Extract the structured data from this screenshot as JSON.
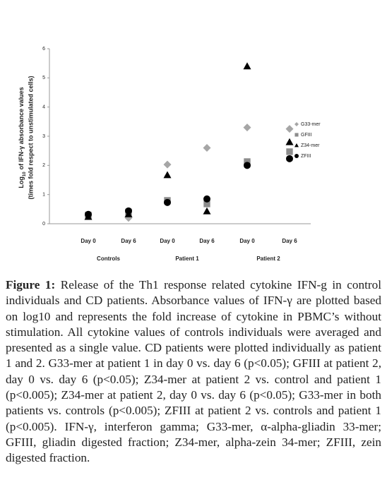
{
  "chart_data": {
    "type": "scatter",
    "y_label_main": "Log",
    "y_label_sub": "10",
    "y_label_rest": "of IFN-γ absorbance values",
    "y_label_line2": "(times fold respect to unstimulated cells)",
    "categories": [
      "Day 0",
      "Day 6",
      "Day 0",
      "Day 6",
      "Day 0",
      "Day 6"
    ],
    "groups": [
      "Controls",
      "Patient 1",
      "Patient 2"
    ],
    "ylim": [
      0,
      6
    ],
    "yticks": [
      0,
      1,
      2,
      3,
      4,
      5,
      6
    ],
    "series": [
      {
        "name": "G33-mer",
        "color": "#a6a6a6",
        "marker": "diamond",
        "values": [
          0.27,
          0.2,
          2.03,
          2.6,
          3.3,
          3.25
        ]
      },
      {
        "name": "GFIII",
        "color": "#8c8c8c",
        "marker": "square",
        "values": [
          0.3,
          0.4,
          0.8,
          0.68,
          2.13,
          2.47
        ]
      },
      {
        "name": "Z34-mer",
        "color": "#000000",
        "marker": "triangle",
        "values": [
          0.24,
          0.33,
          1.67,
          0.43,
          5.4,
          2.8
        ]
      },
      {
        "name": "ZFIII",
        "color": "#000000",
        "marker": "circle",
        "values": [
          0.32,
          0.44,
          0.73,
          0.85,
          2.0,
          2.23
        ]
      }
    ]
  },
  "caption": {
    "label": "Figure 1:",
    "text": "Release of the Th1 response related cytokine IFN-g in control individuals and CD patients. Absorbance values of IFN-γ are plotted based on log10 and represents the fold increase of cytokine in PBMC’s without stimulation. All cytokine values of controls individuals were averaged and presented as a single value. CD patients were plotted individually as patient 1 and 2. G33-mer at patient 1 in day 0 vs. day 6 (p<0.05); GFIII at patient 2, day 0 vs. day 6 (p<0.05); Z34-mer at patient 2 vs. control and patient 1 (p<0.005); Z34-mer at patient 2, day 0 vs. day 6 (p<0.05); G33-mer in both patients vs. controls (p<0.005); ZFIII at patient 2 vs. controls and patient 1 (p<0.005). IFN-γ, interferon gamma; G33-mer, α-alpha-gliadin 33-mer; GFIII, gliadin digested fraction; Z34-mer, alpha-zein 34-mer; ZFIII, zein digested fraction."
  }
}
